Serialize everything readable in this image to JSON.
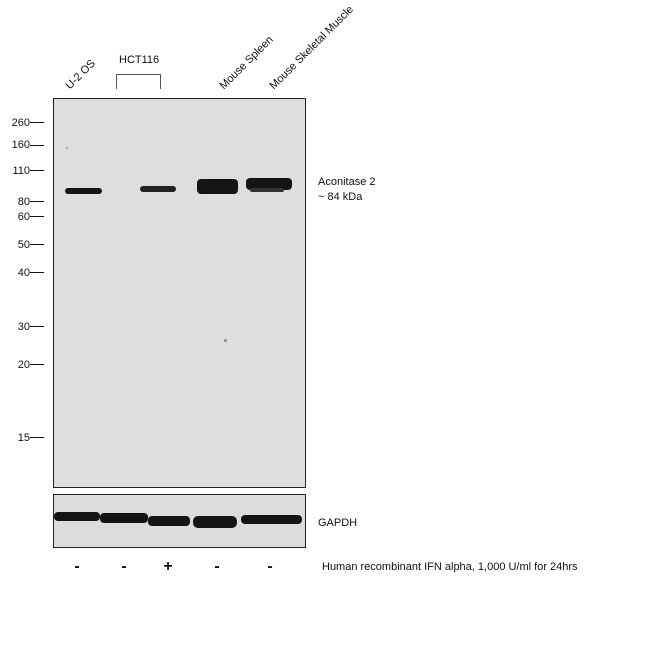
{
  "lanes": [
    "U-2 OS",
    "Mouse Spleen",
    "Mouse Skeletal Muscle"
  ],
  "group_label": "HCT116",
  "mw_markers": [
    "260",
    "160",
    "110",
    "80",
    "60",
    "50",
    "40",
    "30",
    "20",
    "15"
  ],
  "target": {
    "name": "Aconitase 2",
    "size": "~ 84 kDa"
  },
  "loading_control": "GAPDH",
  "treatments": [
    "-",
    "-",
    "+",
    "-",
    "-"
  ],
  "treatment_label": "Human recombinant IFN alpha, 1,000 U/ml for 24hrs"
}
